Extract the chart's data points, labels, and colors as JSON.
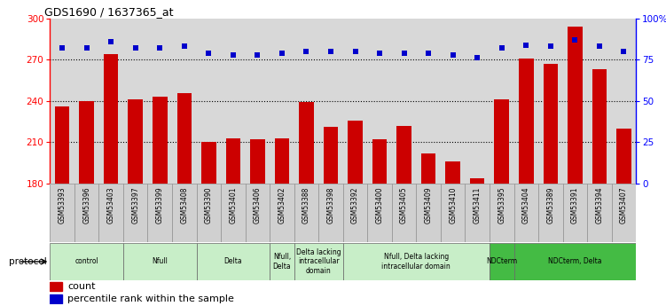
{
  "title": "GDS1690 / 1637365_at",
  "samples": [
    "GSM53393",
    "GSM53396",
    "GSM53403",
    "GSM53397",
    "GSM53399",
    "GSM53408",
    "GSM53390",
    "GSM53401",
    "GSM53406",
    "GSM53402",
    "GSM53388",
    "GSM53398",
    "GSM53392",
    "GSM53400",
    "GSM53405",
    "GSM53409",
    "GSM53410",
    "GSM53411",
    "GSM53395",
    "GSM53404",
    "GSM53389",
    "GSM53391",
    "GSM53394",
    "GSM53407"
  ],
  "counts": [
    236,
    240,
    274,
    241,
    243,
    246,
    210,
    213,
    212,
    213,
    239,
    221,
    226,
    212,
    222,
    202,
    196,
    184,
    241,
    271,
    267,
    294,
    263,
    220
  ],
  "percentile_ranks": [
    82,
    82,
    86,
    82,
    82,
    83,
    79,
    78,
    78,
    79,
    80,
    80,
    80,
    79,
    79,
    79,
    78,
    76,
    82,
    84,
    83,
    87,
    83,
    80
  ],
  "bar_color": "#cc0000",
  "dot_color": "#0000cc",
  "ylim_left": [
    180,
    300
  ],
  "ylim_right": [
    0,
    100
  ],
  "yticks_left": [
    180,
    210,
    240,
    270,
    300
  ],
  "yticks_right": [
    0,
    25,
    50,
    75,
    100
  ],
  "plot_bg": "#d8d8d8",
  "protocol_groups": [
    {
      "label": "control",
      "start": 0,
      "end": 2,
      "color": "#c8eec8"
    },
    {
      "label": "Nfull",
      "start": 3,
      "end": 5,
      "color": "#c8eec8"
    },
    {
      "label": "Delta",
      "start": 6,
      "end": 8,
      "color": "#c8eec8"
    },
    {
      "label": "Nfull,\nDelta",
      "start": 9,
      "end": 9,
      "color": "#c8eec8"
    },
    {
      "label": "Delta lacking\nintracellular\ndomain",
      "start": 10,
      "end": 11,
      "color": "#c8eec8"
    },
    {
      "label": "Nfull, Delta lacking\nintracellular domain",
      "start": 12,
      "end": 17,
      "color": "#c8eec8"
    },
    {
      "label": "NDCterm",
      "start": 18,
      "end": 18,
      "color": "#44bb44"
    },
    {
      "label": "NDCterm, Delta",
      "start": 19,
      "end": 23,
      "color": "#44bb44"
    }
  ],
  "legend_count_label": "count",
  "legend_pct_label": "percentile rank within the sample"
}
